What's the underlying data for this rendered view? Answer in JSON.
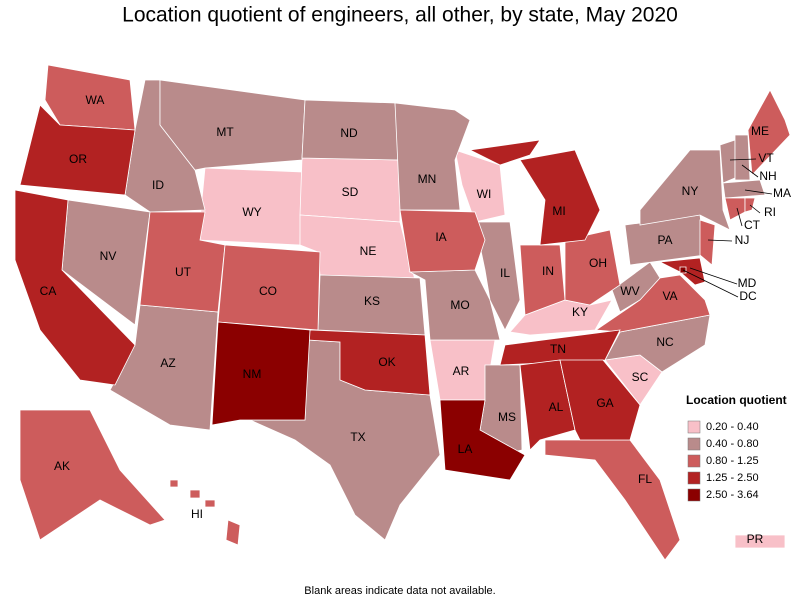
{
  "title": "Location quotient of engineers, all other, by state, May 2020",
  "legend": {
    "title": "Location quotient",
    "items": [
      {
        "label": "0.20 - 0.40",
        "color": "#f8c0c8",
        "states": [
          "WY",
          "SD",
          "NE",
          "WI",
          "KY",
          "AR",
          "SC",
          "PR"
        ]
      },
      {
        "label": "0.40 - 0.80",
        "color": "#b98b8b",
        "states": [
          "ID",
          "NV",
          "MT",
          "ND",
          "MN",
          "KS",
          "MO",
          "IL",
          "TX",
          "MS",
          "NC",
          "WV",
          "PA",
          "NY",
          "VT",
          "NH",
          "MA",
          "AZ"
        ]
      },
      {
        "label": "0.80 - 1.25",
        "color": "#cd5c5c",
        "states": [
          "WA",
          "UT",
          "CO",
          "IA",
          "IN",
          "OH",
          "VA",
          "FL",
          "ME",
          "NJ",
          "CT",
          "RI",
          "AK",
          "HI"
        ]
      },
      {
        "label": "1.25 - 2.50",
        "color": "#b22222",
        "states": [
          "OR",
          "CA",
          "MI",
          "TN",
          "AL",
          "GA",
          "OK",
          "MD"
        ]
      },
      {
        "label": "2.50 - 3.64",
        "color": "#8b0000",
        "states": [
          "NM",
          "LA",
          "DC"
        ]
      }
    ]
  },
  "footnote": "Blank areas indicate data not available."
}
